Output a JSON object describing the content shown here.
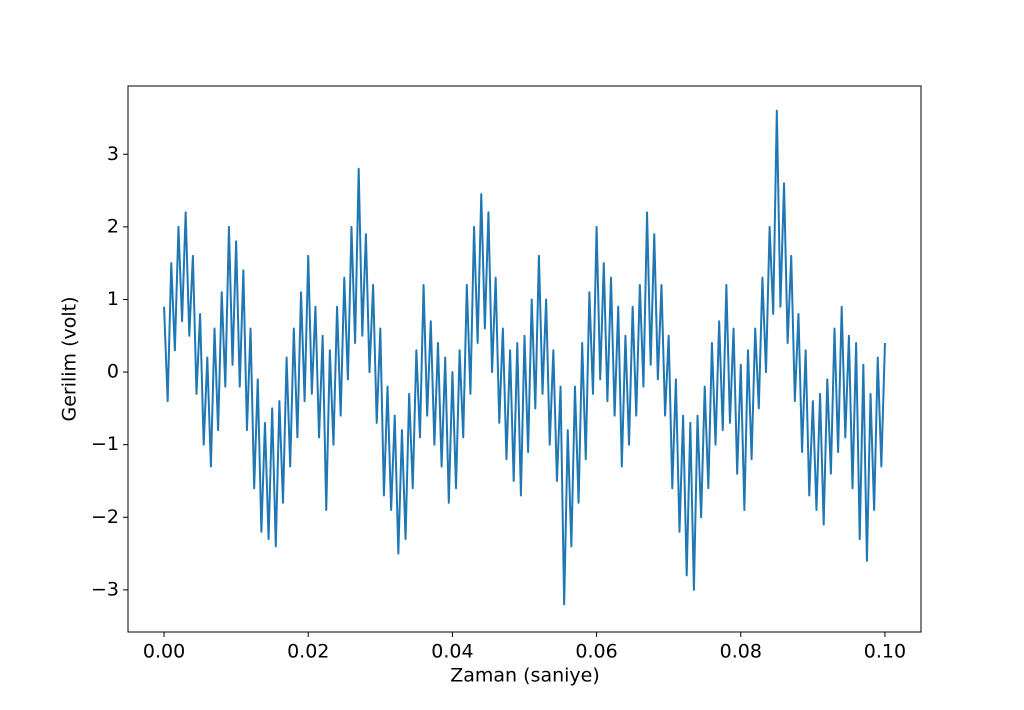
{
  "chart_data": {
    "type": "line",
    "xlabel": "Zaman (saniye)",
    "ylabel": "Gerilim (volt)",
    "color": "#1f77b4",
    "xlim": [
      -0.005,
      0.105
    ],
    "ylim": [
      -3.58,
      3.94
    ],
    "xticks": [
      {
        "value": 0,
        "label": "0.00"
      },
      {
        "value": 0.02,
        "label": "0.02"
      },
      {
        "value": 0.04,
        "label": "0.04"
      },
      {
        "value": 0.06,
        "label": "0.06"
      },
      {
        "value": 0.08,
        "label": "0.08"
      },
      {
        "value": 0.1,
        "label": "0.10"
      }
    ],
    "yticks": [
      {
        "value": -3,
        "label": "−3"
      },
      {
        "value": -2,
        "label": "−2"
      },
      {
        "value": -1,
        "label": "−1"
      },
      0,
      1,
      2,
      3
    ],
    "x": [
      0,
      0.0005,
      0.001,
      0.0015,
      0.002,
      0.0025,
      0.003,
      0.0035,
      0.004,
      0.0045,
      0.005,
      0.0055,
      0.006,
      0.0065,
      0.007,
      0.0075,
      0.008,
      0.0085,
      0.009,
      0.0095,
      0.01,
      0.0105,
      0.011,
      0.0115,
      0.012,
      0.0125,
      0.013,
      0.0135,
      0.014,
      0.0145,
      0.015,
      0.0155,
      0.016,
      0.0165,
      0.017,
      0.0175,
      0.018,
      0.0185,
      0.019,
      0.0195,
      0.02,
      0.0205,
      0.021,
      0.0215,
      0.022,
      0.0225,
      0.023,
      0.0235,
      0.024,
      0.0245,
      0.025,
      0.0255,
      0.026,
      0.0265,
      0.027,
      0.0275,
      0.028,
      0.0285,
      0.029,
      0.0295,
      0.03,
      0.0305,
      0.031,
      0.0315,
      0.032,
      0.0325,
      0.033,
      0.0335,
      0.034,
      0.0345,
      0.035,
      0.0355,
      0.036,
      0.0365,
      0.037,
      0.0375,
      0.038,
      0.0385,
      0.039,
      0.0395,
      0.04,
      0.0405,
      0.041,
      0.0415,
      0.042,
      0.0425,
      0.043,
      0.0435,
      0.044,
      0.0445,
      0.045,
      0.0455,
      0.046,
      0.0465,
      0.047,
      0.0475,
      0.048,
      0.0485,
      0.049,
      0.0495,
      0.05,
      0.0505,
      0.051,
      0.0515,
      0.052,
      0.0525,
      0.053,
      0.0535,
      0.054,
      0.0545,
      0.055,
      0.0555,
      0.056,
      0.0565,
      0.057,
      0.0575,
      0.058,
      0.0585,
      0.059,
      0.0595,
      0.06,
      0.0605,
      0.061,
      0.0615,
      0.062,
      0.0625,
      0.063,
      0.0635,
      0.064,
      0.0645,
      0.065,
      0.0655,
      0.066,
      0.0665,
      0.067,
      0.0675,
      0.068,
      0.0685,
      0.069,
      0.0695,
      0.07,
      0.0705,
      0.071,
      0.0715,
      0.072,
      0.0725,
      0.073,
      0.0735,
      0.074,
      0.0745,
      0.075,
      0.0755,
      0.076,
      0.0765,
      0.077,
      0.0775,
      0.078,
      0.0785,
      0.079,
      0.0795,
      0.08,
      0.0805,
      0.081,
      0.0815,
      0.082,
      0.0825,
      0.083,
      0.0835,
      0.084,
      0.0845,
      0.085,
      0.0855,
      0.086,
      0.0865,
      0.087,
      0.0875,
      0.088,
      0.0885,
      0.089,
      0.0895,
      0.09,
      0.0905,
      0.091,
      0.0915,
      0.092,
      0.0925,
      0.093,
      0.0935,
      0.094,
      0.0945,
      0.095,
      0.0955,
      0.096,
      0.0965,
      0.097,
      0.0975,
      0.098,
      0.0985,
      0.099,
      0.0995,
      0.1
    ],
    "values": [
      0.9,
      -0.4,
      1.5,
      0.3,
      2.0,
      0.7,
      2.2,
      0.5,
      1.6,
      -0.3,
      0.8,
      -1.0,
      0.2,
      -1.3,
      0.6,
      -0.8,
      1.1,
      -0.2,
      2.0,
      0.1,
      1.8,
      -0.2,
      1.4,
      -0.8,
      0.6,
      -1.6,
      -0.1,
      -2.2,
      -0.7,
      -2.3,
      -0.5,
      -2.4,
      -0.4,
      -1.8,
      0.2,
      -1.3,
      0.6,
      -0.9,
      1.1,
      -0.4,
      1.6,
      -0.3,
      0.9,
      -0.9,
      0.5,
      -1.9,
      0.3,
      -1.0,
      0.9,
      -0.6,
      1.3,
      -0.1,
      2.0,
      0.4,
      2.8,
      0.5,
      1.9,
      0.0,
      1.2,
      -0.7,
      0.6,
      -1.7,
      -0.2,
      -1.9,
      -0.6,
      -2.5,
      -0.8,
      -2.3,
      -0.3,
      -1.6,
      0.3,
      -0.9,
      1.2,
      -0.6,
      0.7,
      -1.0,
      0.4,
      -1.3,
      0.2,
      -1.8,
      0.0,
      -1.6,
      0.3,
      -0.9,
      1.2,
      -0.3,
      2.0,
      0.4,
      2.45,
      0.6,
      2.2,
      0.0,
      1.3,
      -0.7,
      0.6,
      -1.2,
      0.3,
      -1.5,
      0.4,
      -1.7,
      0.5,
      -1.1,
      1.0,
      -0.5,
      1.6,
      -0.3,
      1.0,
      -1.0,
      0.3,
      -1.5,
      -0.2,
      -3.2,
      -0.8,
      -2.4,
      -0.2,
      -1.8,
      0.4,
      -1.2,
      1.1,
      -0.3,
      2.0,
      -0.1,
      1.5,
      -0.4,
      1.3,
      -0.6,
      0.9,
      -1.3,
      0.5,
      -1.0,
      0.9,
      -0.6,
      1.2,
      -0.2,
      2.2,
      0.1,
      1.9,
      -0.1,
      1.2,
      -0.6,
      0.5,
      -1.6,
      -0.1,
      -2.2,
      -0.6,
      -2.8,
      -0.7,
      -3.0,
      -0.6,
      -2.0,
      -0.2,
      -1.6,
      0.4,
      -1.0,
      0.7,
      -0.8,
      1.2,
      -0.7,
      0.6,
      -1.4,
      0.1,
      -1.9,
      0.3,
      -1.2,
      0.6,
      -0.5,
      1.3,
      0.0,
      2.0,
      0.8,
      3.6,
      0.9,
      2.6,
      0.4,
      1.6,
      -0.4,
      0.8,
      -1.1,
      0.3,
      -1.7,
      -0.4,
      -1.9,
      -0.3,
      -2.1,
      -0.1,
      -1.4,
      0.6,
      -1.1,
      0.9,
      -0.9,
      0.5,
      -1.6,
      0.4,
      -2.3,
      0.1,
      -2.6,
      -0.3,
      -1.9,
      0.2,
      -1.3,
      0.4
    ]
  }
}
